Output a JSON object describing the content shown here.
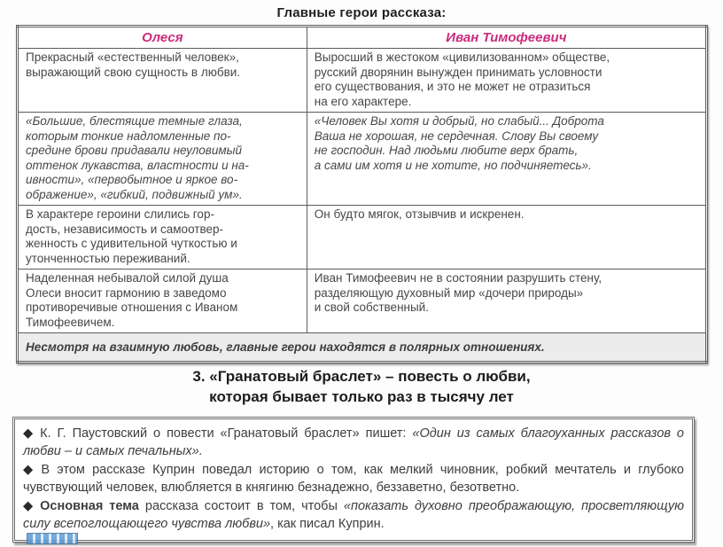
{
  "page": {
    "title": "Главные герои рассказа:"
  },
  "colors": {
    "header_accent": "#cc2b7d",
    "body_text": "#474747",
    "border": "#5c5c5c",
    "footer_bg": "#ececec"
  },
  "table": {
    "headers": [
      "Олеся",
      "Иван Тимофеевич"
    ],
    "rows": [
      {
        "olesya": "Прекрасный «естественный человек»,\nвыражающий свою сущность в любви.",
        "ivan": "Выросший в жестоком «цивилизованном» обществе,\nрусский дворянин вынужден принимать условности\nего существования, и это не может не отразиться\nна его характере."
      },
      {
        "olesya": "«Большие, блестящие темные глаза,\nкоторым тонкие надломленные по-\nсредине брови придавали неуловимый\nоттенок лукавства, властности и на-\nивности», «первобытное и яркое во-\nображение», «гибкий, подвижный ум».",
        "ivan": "«Человек Вы хотя и добрый, но слабый... Доброта\nВаша не хорошая, не сердечная. Слову Вы своему\nне господин. Над людьми любите верх брать,\nа сами им хотя и не хотите, но подчиняетесь»."
      },
      {
        "olesya": "В характере героини слились гор-\nдость, независимость и самоотвер-\nженность с удивительной чуткостью и\nутонченностью переживаний.",
        "ivan": "Он будто мягок, отзывчив и искренен."
      },
      {
        "olesya": "Наделенная небывалой силой душа\nОлеси вносит гармонию в заведомо\nпротиворечивые отношения с Иваном\nТимофеевичем.",
        "ivan": "Иван Тимофеевич не в состоянии разрушить стену,\nразделяющую духовный мир «дочери природы»\nи свой собственный."
      }
    ],
    "footer": "Несмотря на взаимную любовь, главные герои находятся в полярных отношениях."
  },
  "section": {
    "heading": "3. «Гранатовый браслет» – повесть о любви,\nкоторая бывает только раз в тысячу лет"
  },
  "quote_box": {
    "bullet_glyph": "◆",
    "bullets": [
      {
        "lead_bold": "",
        "lead": "К. Г. Паустовский о повести «Гранатовый браслет» пишет: ",
        "quote": "«Один из самых благоуханных рассказов о любви – и самых печальных».",
        "tail": ""
      },
      {
        "lead_bold": "",
        "lead": "В этом рассказе Куприн поведал историю о том, как мелкий чиновник, робкий мечтатель и глубоко чувствующий человек, влюбляется в княгиню безнадежно, беззаветно, безответно.",
        "quote": "",
        "tail": ""
      },
      {
        "lead_bold": "Основная тема",
        "lead": " рассказа состоит в том, чтобы ",
        "quote": "«показать духовно преображающую, просветляющую силу всепоглощающего чувства любви»",
        "tail": ", как писал Куприн."
      }
    ]
  }
}
